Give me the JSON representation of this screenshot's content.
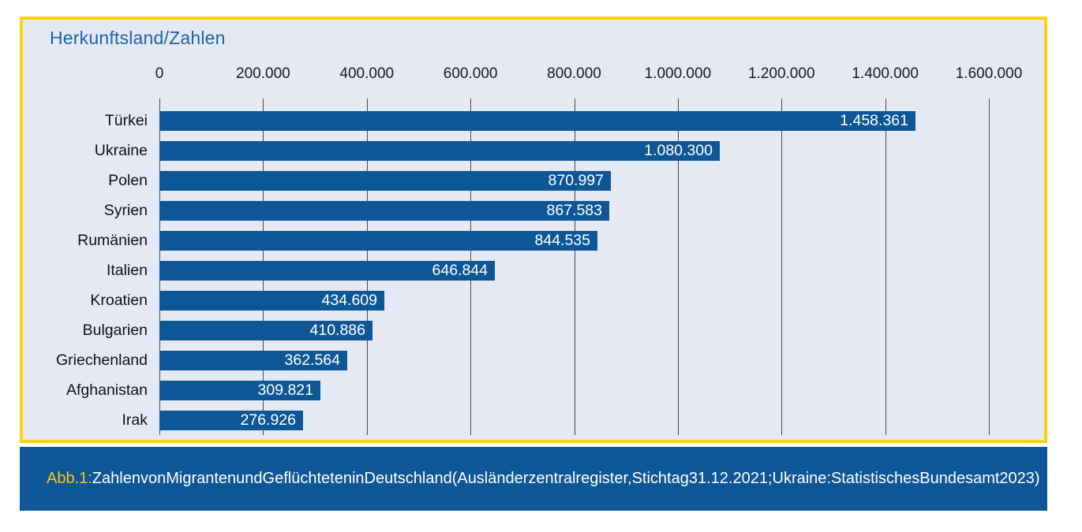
{
  "panel": {
    "title": "Herkunftsland/Zahlen"
  },
  "caption": {
    "prefix": "Abb.1:",
    "text": "ZahlenvonMigrantenundGeflüchteteninDeutschland(Ausländerzentralregister,Stichtag31.12.2021;Ukraine:StatistischesBundesamt2023)"
  },
  "colors": {
    "bar": "#0d5796",
    "panel_background": "#e5e9f4",
    "panel_border_yellow": "#fbd207",
    "caption_band": "#0e5796",
    "title_blue": "#1a64ab",
    "caption_prefix_yellow": "#ffc709",
    "gridline_gray": "#4b4b4b"
  },
  "chart_data": {
    "type": "bar",
    "orientation": "horizontal",
    "title": "Herkunftsland/Zahlen",
    "categories": [
      "Türkei",
      "Ukraine",
      "Polen",
      "Syrien",
      "Rumänien",
      "Italien",
      "Kroatien",
      "Bulgarien",
      "Griechenland",
      "Afghanistan",
      "Irak"
    ],
    "values": [
      1458361,
      1080300,
      870997,
      867583,
      844535,
      646844,
      434609,
      410886,
      362564,
      309821,
      276926
    ],
    "value_labels": [
      "1.458.361",
      "1.080.300",
      "870.997",
      "867.583",
      "844.535",
      "646.844",
      "434.609",
      "410.886",
      "362.564",
      "309.821",
      "276.926"
    ],
    "xlim": [
      0,
      1600000
    ],
    "x_ticks": [
      0,
      200000,
      400000,
      600000,
      800000,
      1000000,
      1200000,
      1400000,
      1600000
    ],
    "x_tick_labels": [
      "0",
      "200.000",
      "400.000",
      "600.000",
      "800.000",
      "1.000.000",
      "1.200.000",
      "1.400.000",
      "1.600.000"
    ],
    "grid": true,
    "legend_position": "none",
    "value_label_position": "inside-end",
    "bar_color": "#0d5796"
  }
}
